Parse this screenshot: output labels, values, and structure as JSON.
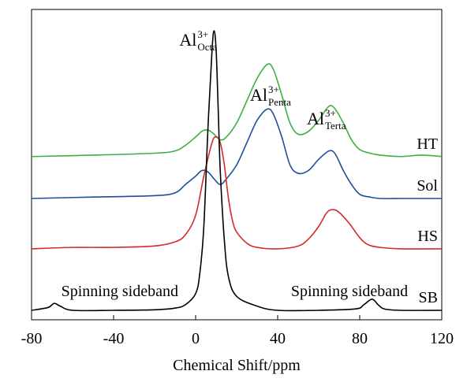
{
  "chart_data": {
    "type": "line",
    "xlabel": "Chemical Shift/ppm",
    "xlim": [
      -80,
      120
    ],
    "xticks": [
      -80,
      -40,
      0,
      40,
      80,
      120
    ],
    "y_axis_visible": false,
    "x_axis_reversed": false,
    "peak_labels": [
      {
        "base": "Al",
        "sup": "3+",
        "sub": "Octa",
        "ppm": 9
      },
      {
        "base": "Al",
        "sup": "3+",
        "sub": "Penta",
        "ppm": 35
      },
      {
        "base": "Al",
        "sup": "3+",
        "sub": "Terta",
        "ppm": 65
      }
    ],
    "annotations": [
      {
        "text": "Spinning sideband",
        "ppm": -37
      },
      {
        "text": "Spinning sideband",
        "ppm": 75
      }
    ],
    "series": [
      {
        "name": "HT",
        "color": "#3cb043",
        "offset": 0.55,
        "x": [
          -80,
          -50,
          -20,
          -10,
          -5,
          0,
          3,
          6,
          9,
          12,
          15,
          20,
          25,
          30,
          35,
          38,
          42,
          46,
          50,
          55,
          60,
          65,
          68,
          72,
          76,
          80,
          85,
          90,
          100,
          110,
          120
        ],
        "y": [
          0.0,
          0.005,
          0.012,
          0.02,
          0.04,
          0.07,
          0.09,
          0.095,
          0.08,
          0.06,
          0.07,
          0.12,
          0.2,
          0.28,
          0.33,
          0.31,
          0.22,
          0.12,
          0.08,
          0.09,
          0.13,
          0.18,
          0.17,
          0.12,
          0.06,
          0.025,
          0.012,
          0.005,
          0.0,
          0.005,
          0.0
        ]
      },
      {
        "name": "Sol",
        "color": "#1f4e9c",
        "offset": 0.4,
        "x": [
          -80,
          -50,
          -20,
          -10,
          -5,
          0,
          3,
          6,
          9,
          12,
          15,
          20,
          25,
          30,
          35,
          38,
          42,
          46,
          50,
          55,
          60,
          65,
          68,
          72,
          76,
          80,
          85,
          90,
          100,
          110,
          120
        ],
        "y": [
          0.0,
          0.005,
          0.01,
          0.02,
          0.05,
          0.08,
          0.1,
          0.095,
          0.07,
          0.05,
          0.07,
          0.12,
          0.2,
          0.28,
          0.32,
          0.3,
          0.22,
          0.12,
          0.09,
          0.1,
          0.14,
          0.17,
          0.16,
          0.1,
          0.05,
          0.015,
          0.005,
          0.0,
          0.0,
          0.0,
          0.0
        ]
      },
      {
        "name": "HS",
        "color": "#d42a2a",
        "offset": 0.22,
        "x": [
          -80,
          -60,
          -40,
          -20,
          -10,
          -5,
          0,
          4,
          8,
          10,
          12,
          14,
          16,
          18,
          20,
          25,
          30,
          40,
          50,
          55,
          60,
          64,
          67,
          70,
          75,
          80,
          84,
          90,
          100,
          120
        ],
        "y": [
          0.0,
          0.005,
          0.005,
          0.01,
          0.025,
          0.05,
          0.12,
          0.26,
          0.38,
          0.4,
          0.38,
          0.3,
          0.18,
          0.1,
          0.06,
          0.02,
          0.005,
          0.0,
          0.01,
          0.035,
          0.08,
          0.13,
          0.14,
          0.13,
          0.09,
          0.04,
          0.015,
          0.005,
          0.0,
          0.0
        ]
      },
      {
        "name": "SB",
        "color": "#000000",
        "offset": 0.0,
        "x": [
          -80,
          -72,
          -69,
          -66,
          -60,
          -40,
          -20,
          -10,
          -5,
          0,
          2,
          4,
          6,
          8,
          9,
          10,
          11,
          12,
          14,
          16,
          20,
          30,
          40,
          60,
          78,
          82,
          86,
          89,
          92,
          100,
          120
        ],
        "y": [
          0.0,
          0.01,
          0.025,
          0.015,
          0.0,
          0.0,
          0.002,
          0.008,
          0.02,
          0.06,
          0.13,
          0.3,
          0.65,
          0.93,
          1.0,
          0.93,
          0.72,
          0.5,
          0.25,
          0.12,
          0.05,
          0.015,
          0.0,
          0.0,
          0.005,
          0.02,
          0.04,
          0.02,
          0.005,
          0.0,
          0.0
        ]
      }
    ]
  }
}
